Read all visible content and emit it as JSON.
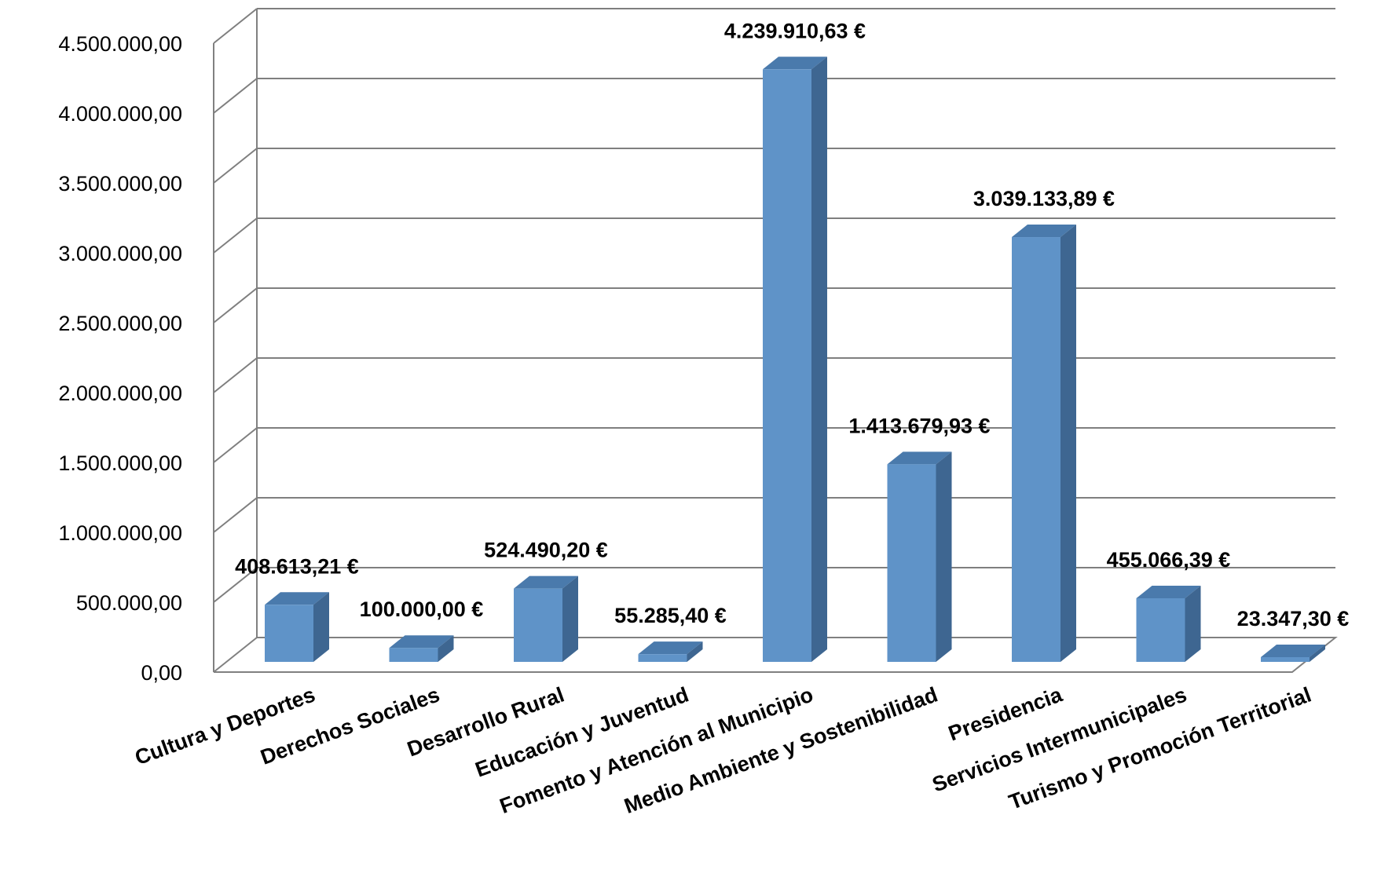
{
  "chart_data": {
    "type": "bar",
    "title": "",
    "xlabel": "",
    "ylabel": "",
    "ylim": [
      0,
      4500000
    ],
    "grid": true,
    "legend": "none",
    "style": "3d-column",
    "colors": {
      "bar_front": "#5f93c8",
      "bar_side": "#3e6691",
      "bar_top": "#4a7aac",
      "grid": "#7f7f7f",
      "axis": "#808080"
    },
    "y_ticks": [
      "0,00",
      "500.000,00",
      "1.000.000,00",
      "1.500.000,00",
      "2.000.000,00",
      "2.500.000,00",
      "3.000.000,00",
      "3.500.000,00",
      "4.000.000,00",
      "4.500.000,00"
    ],
    "y_tick_values": [
      0,
      500000,
      1000000,
      1500000,
      2000000,
      2500000,
      3000000,
      3500000,
      4000000,
      4500000
    ],
    "categories": [
      "Cultura y Deportes",
      "Derechos Sociales",
      "Desarrollo Rural",
      "Educación y Juventud",
      "Fomento y Atención al Municipio",
      "Medio Ambiente y Sostenibilidad",
      "Presidencia",
      "Servicios Intermunicipales",
      "Turismo y Promoción Territorial"
    ],
    "values": [
      408613.21,
      100000.0,
      524490.2,
      55285.4,
      4239910.63,
      1413679.93,
      3039133.89,
      455066.39,
      23347.3
    ],
    "data_labels": [
      "408.613,21 €",
      "100.000,00 €",
      "524.490,20 €",
      "55.285,40 €",
      "4.239.910,63 €",
      "1.413.679,93 €",
      "3.039.133,89 €",
      "455.066,39 €",
      "23.347,30 €"
    ]
  }
}
